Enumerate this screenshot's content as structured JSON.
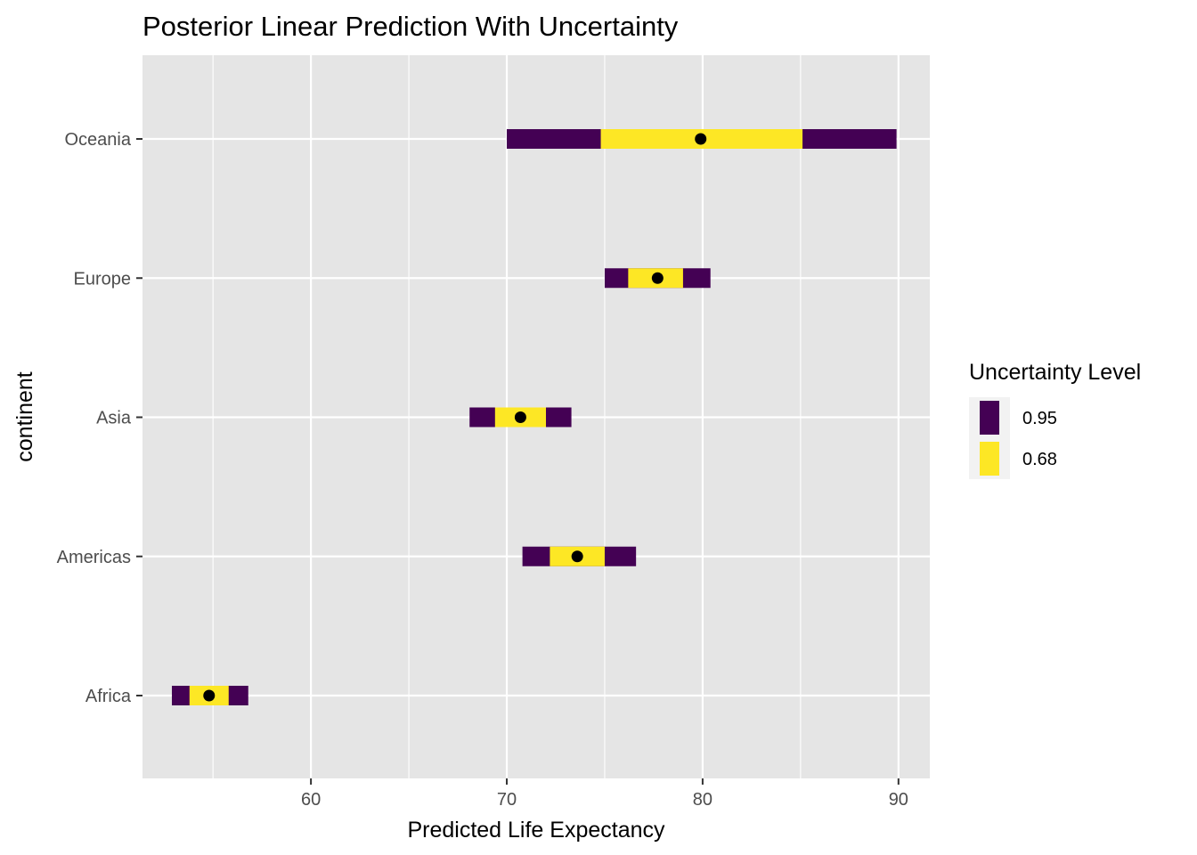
{
  "chart_data": {
    "type": "interval",
    "title": "Posterior Linear Prediction With Uncertainty",
    "xlabel": "Predicted Life Expectancy",
    "ylabel": "continent",
    "xlim": [
      51.4,
      91.6
    ],
    "x_ticks": [
      60,
      70,
      80,
      90
    ],
    "x_minor_ticks": [
      55,
      65,
      75,
      85
    ],
    "categories": [
      "Africa",
      "Americas",
      "Asia",
      "Europe",
      "Oceania"
    ],
    "point_estimates": [
      54.8,
      73.6,
      70.7,
      77.7,
      79.9
    ],
    "intervals": [
      {
        "level": "0.95",
        "color": "#440154",
        "lower": [
          52.9,
          70.8,
          68.1,
          75.0,
          70.0
        ],
        "upper": [
          56.8,
          76.6,
          73.3,
          80.4,
          89.9
        ]
      },
      {
        "level": "0.68",
        "color": "#FDE725",
        "lower": [
          53.8,
          72.2,
          69.4,
          76.2,
          74.8
        ],
        "upper": [
          55.8,
          75.0,
          72.0,
          79.0,
          85.1
        ]
      }
    ],
    "point_color": "#000000",
    "grid": true,
    "panel_background": "#E5E5E5",
    "legend": {
      "title": "Uncertainty Level",
      "position": "right",
      "entries": [
        {
          "label": "0.95",
          "color": "#440154"
        },
        {
          "label": "0.68",
          "color": "#FDE725"
        }
      ]
    }
  }
}
